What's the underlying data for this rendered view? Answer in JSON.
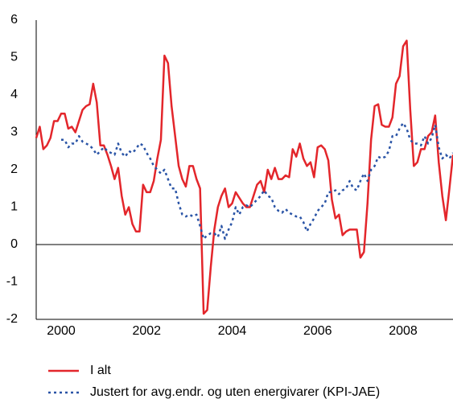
{
  "chart_data": {
    "type": "line",
    "categories": [
      null,
      null,
      null,
      null,
      null,
      null,
      null,
      "2000",
      null,
      null,
      null,
      null,
      null,
      null,
      null,
      null,
      null,
      null,
      null,
      null,
      null,
      null,
      null,
      null,
      null,
      null,
      null,
      null,
      null,
      null,
      null,
      "2002",
      null,
      null,
      null,
      null,
      null,
      null,
      null,
      null,
      null,
      null,
      null,
      null,
      null,
      null,
      null,
      null,
      null,
      null,
      null,
      null,
      null,
      null,
      null,
      "2004",
      null,
      null,
      null,
      null,
      null,
      null,
      null,
      null,
      null,
      null,
      null,
      null,
      null,
      null,
      null,
      null,
      null,
      null,
      null,
      null,
      null,
      null,
      null,
      "2006",
      null,
      null,
      null,
      null,
      null,
      null,
      null,
      null,
      null,
      null,
      null,
      null,
      null,
      null,
      null,
      null,
      null,
      null,
      null,
      null,
      null,
      null,
      null,
      "2008",
      null,
      null,
      null,
      null,
      null,
      null,
      null,
      null,
      null,
      null,
      null,
      null,
      null,
      null
    ],
    "series": [
      {
        "name": "I alt",
        "color": "#e3262b",
        "line_style": "solid",
        "values": [
          2.85,
          3.15,
          2.55,
          2.65,
          2.85,
          3.3,
          3.3,
          3.5,
          3.5,
          3.1,
          3.15,
          3.0,
          3.3,
          3.6,
          3.7,
          3.75,
          4.3,
          3.8,
          2.65,
          2.65,
          2.4,
          2.1,
          1.75,
          2.05,
          1.3,
          0.8,
          1.0,
          0.55,
          0.35,
          0.35,
          1.6,
          1.4,
          1.4,
          1.7,
          2.3,
          2.8,
          5.05,
          4.85,
          3.7,
          2.9,
          2.1,
          1.75,
          1.55,
          2.1,
          2.1,
          1.75,
          1.5,
          -1.85,
          -1.75,
          -0.6,
          0.4,
          1.0,
          1.3,
          1.5,
          1.0,
          1.1,
          1.4,
          1.25,
          1.1,
          1.0,
          1.0,
          1.3,
          1.6,
          1.7,
          1.4,
          2.0,
          1.75,
          2.05,
          1.75,
          1.75,
          1.85,
          1.8,
          2.55,
          2.35,
          2.7,
          2.3,
          2.1,
          2.2,
          1.8,
          2.6,
          2.65,
          2.55,
          2.25,
          1.2,
          0.7,
          0.8,
          0.25,
          0.35,
          0.4,
          0.4,
          0.4,
          -0.35,
          -0.2,
          1.1,
          2.8,
          3.7,
          3.75,
          3.2,
          3.15,
          3.15,
          3.4,
          4.3,
          4.5,
          5.3,
          5.45,
          3.6,
          2.1,
          2.2,
          2.55,
          2.55,
          2.9,
          3.0,
          3.45,
          2.2,
          1.3,
          0.65,
          1.5,
          2.4
        ]
      },
      {
        "name": "Justert for avg.endr. og uten energivarer (KPI-JAE)",
        "color": "#2a54a6",
        "line_style": "dotted",
        "values": [
          null,
          null,
          null,
          null,
          null,
          null,
          null,
          2.8,
          2.8,
          2.6,
          2.7,
          2.7,
          2.9,
          2.75,
          2.7,
          2.65,
          2.55,
          2.4,
          2.5,
          2.6,
          2.5,
          2.45,
          2.4,
          2.7,
          2.45,
          2.35,
          2.5,
          2.45,
          2.55,
          2.7,
          2.65,
          2.45,
          2.3,
          2.1,
          2.0,
          1.9,
          2.0,
          1.75,
          1.5,
          1.5,
          1.1,
          0.8,
          0.75,
          0.8,
          0.75,
          0.8,
          0.5,
          0.15,
          0.25,
          0.3,
          0.3,
          0.2,
          0.5,
          0.15,
          0.4,
          0.6,
          1.0,
          0.8,
          1.0,
          1.05,
          1.0,
          1.1,
          1.2,
          1.3,
          1.45,
          1.3,
          1.25,
          1.0,
          0.9,
          0.85,
          0.95,
          0.85,
          0.8,
          0.75,
          0.75,
          0.6,
          0.35,
          0.55,
          0.7,
          0.9,
          1.0,
          1.1,
          1.4,
          1.4,
          1.45,
          1.35,
          1.45,
          1.5,
          1.7,
          1.5,
          1.45,
          1.7,
          1.9,
          1.7,
          2.0,
          2.1,
          2.35,
          2.3,
          2.35,
          2.5,
          2.9,
          2.9,
          3.1,
          3.25,
          3.1,
          2.8,
          2.7,
          2.7,
          2.65,
          2.9,
          2.7,
          2.85,
          3.2,
          2.6,
          2.3,
          2.4,
          2.3,
          2.45
        ]
      }
    ],
    "ylim": [
      -2,
      6
    ],
    "yticks": [
      -2,
      -1,
      0,
      1,
      2,
      3,
      4,
      5,
      6
    ],
    "legend": "bottom"
  }
}
